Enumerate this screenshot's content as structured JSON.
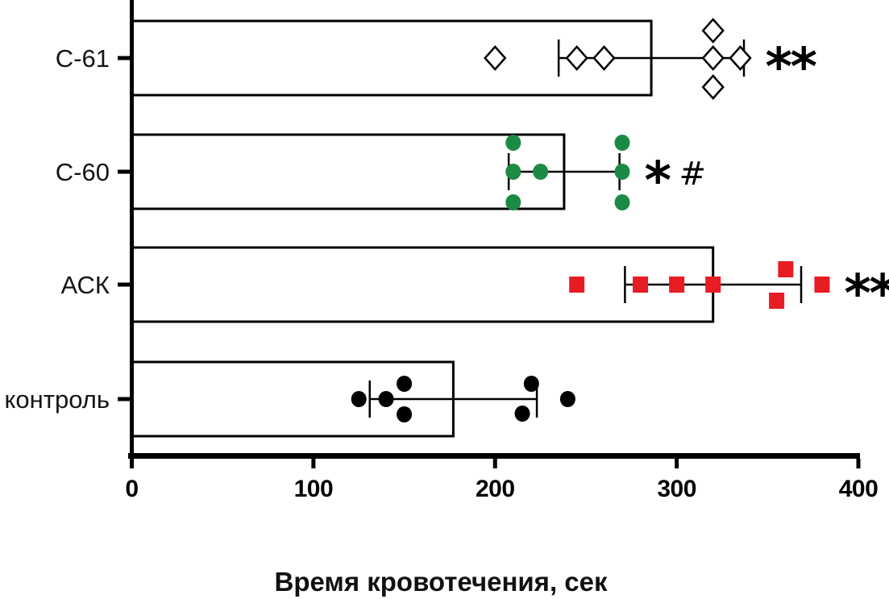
{
  "chart_data": {
    "type": "bar",
    "orientation": "horizontal",
    "title": "",
    "xlabel": "Время кровотечения, сек",
    "ylabel": "",
    "xlim": [
      0,
      400
    ],
    "grid": false,
    "bar_fill": "#ffffff",
    "bar_stroke": "#000000",
    "error_bar_style": "mean ± SD, capped whiskers",
    "xticks": [
      {
        "value": 0,
        "label": "0"
      },
      {
        "value": 100,
        "label": "100"
      },
      {
        "value": 200,
        "label": "200"
      },
      {
        "value": 300,
        "label": "300"
      },
      {
        "value": 400,
        "label": "400"
      }
    ],
    "categories_top_to_bottom": [
      "С-61",
      "С-60",
      "АСК",
      "контроль"
    ],
    "series": [
      {
        "name": "С-61",
        "slug": "c-61",
        "mean": 286,
        "sd": 51,
        "significance": "**",
        "marker": {
          "shape": "diamond",
          "fill": "#ffffff",
          "stroke": "#000000"
        },
        "points": [
          {
            "v": 200,
            "dy": 0
          },
          {
            "v": 245,
            "dy": 0
          },
          {
            "v": 260,
            "dy": 0
          },
          {
            "v": 320,
            "dy": -34
          },
          {
            "v": 320,
            "dy": 0
          },
          {
            "v": 335,
            "dy": 0
          },
          {
            "v": 320,
            "dy": 36
          }
        ]
      },
      {
        "name": "С-60",
        "slug": "c-60",
        "mean": 238,
        "sd": 30.5,
        "significance": "* #",
        "marker": {
          "shape": "circle",
          "fill": "#1b8a43",
          "stroke": "none"
        },
        "points": [
          {
            "v": 210,
            "dy": -36
          },
          {
            "v": 210,
            "dy": 0
          },
          {
            "v": 225,
            "dy": 0
          },
          {
            "v": 210,
            "dy": 38
          },
          {
            "v": 270,
            "dy": -36
          },
          {
            "v": 270,
            "dy": 0
          },
          {
            "v": 270,
            "dy": 38
          }
        ]
      },
      {
        "name": "АСК",
        "slug": "ask",
        "mean": 320,
        "sd": 48.5,
        "significance": "**",
        "marker": {
          "shape": "square",
          "fill": "#e81c23",
          "stroke": "none"
        },
        "points": [
          {
            "v": 245,
            "dy": 0
          },
          {
            "v": 280,
            "dy": 0
          },
          {
            "v": 300,
            "dy": 0
          },
          {
            "v": 320,
            "dy": 0
          },
          {
            "v": 360,
            "dy": -19
          },
          {
            "v": 355,
            "dy": 20
          },
          {
            "v": 380,
            "dy": 0
          }
        ]
      },
      {
        "name": "контроль",
        "slug": "control",
        "mean": 177,
        "sd": 46,
        "significance": "",
        "marker": {
          "shape": "circle",
          "fill": "#000000",
          "stroke": "none"
        },
        "points": [
          {
            "v": 125,
            "dy": 0
          },
          {
            "v": 140,
            "dy": 0
          },
          {
            "v": 150,
            "dy": -19
          },
          {
            "v": 150,
            "dy": 19
          },
          {
            "v": 220,
            "dy": -19
          },
          {
            "v": 215,
            "dy": 18
          },
          {
            "v": 240,
            "dy": 0
          }
        ]
      }
    ]
  }
}
